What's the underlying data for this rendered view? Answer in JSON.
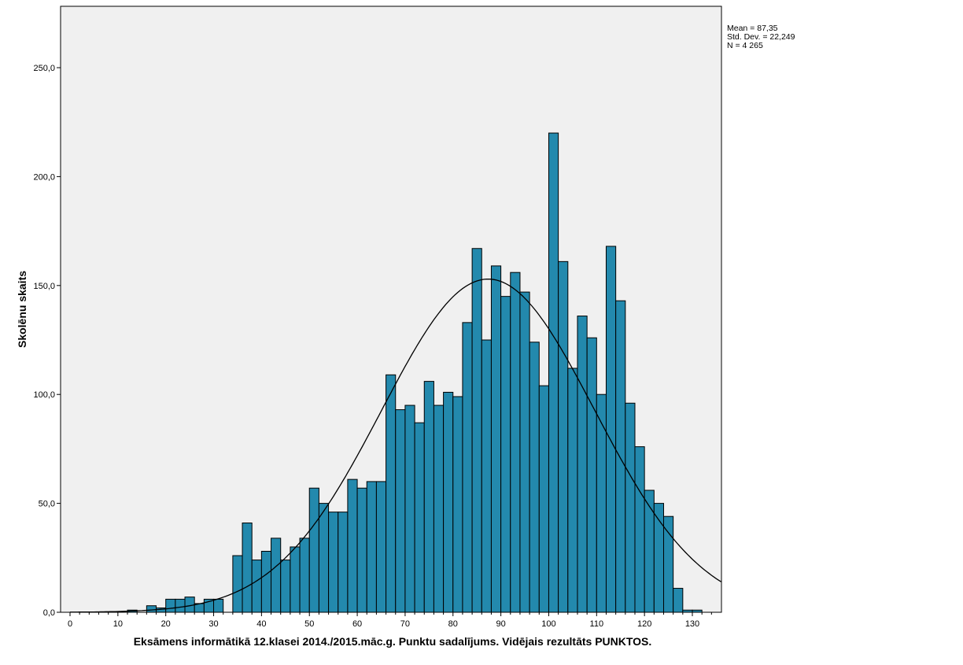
{
  "chart_data": {
    "type": "bar",
    "subtype": "histogram",
    "xlabel": "Eksāmens informātikā 12.klasei 2014./2015.māc.g. Punktu sadalījums. Vidējais rezultāts PUNKTOS.",
    "ylabel": "Skolēnu skaits",
    "xlim": [
      -2,
      136
    ],
    "ylim": [
      0,
      278
    ],
    "bin_width": 2,
    "x_ticks": [
      0,
      10,
      20,
      30,
      40,
      50,
      60,
      70,
      80,
      90,
      100,
      110,
      120,
      130
    ],
    "x_tick_labels": [
      "0",
      "10",
      "20",
      "30",
      "40",
      "50",
      "60",
      "70",
      "80",
      "90",
      "100",
      "110",
      "120",
      "130"
    ],
    "y_ticks": [
      0,
      50,
      100,
      150,
      200,
      250
    ],
    "y_tick_labels": [
      "0,0",
      "50,0",
      "100,0",
      "150,0",
      "200,0",
      "250,0"
    ],
    "bin_starts": [
      12,
      14,
      16,
      18,
      20,
      22,
      24,
      26,
      28,
      30,
      32,
      34,
      36,
      38,
      40,
      42,
      44,
      46,
      48,
      50,
      52,
      54,
      56,
      58,
      60,
      62,
      64,
      66,
      68,
      70,
      72,
      74,
      76,
      78,
      80,
      82,
      84,
      86,
      88,
      90,
      92,
      94,
      96,
      98,
      100,
      102,
      104,
      106,
      108,
      110,
      112,
      114,
      116,
      118,
      120,
      122,
      124,
      126,
      128,
      130
    ],
    "values": [
      1,
      0,
      3,
      2,
      6,
      6,
      7,
      4,
      6,
      6,
      0,
      26,
      41,
      24,
      28,
      34,
      24,
      30,
      34,
      57,
      50,
      46,
      46,
      61,
      57,
      60,
      60,
      109,
      93,
      95,
      87,
      106,
      95,
      101,
      99,
      133,
      167,
      125,
      159,
      145,
      156,
      147,
      124,
      104,
      220,
      161,
      112,
      136,
      126,
      100,
      168,
      143,
      96,
      76,
      56,
      50,
      44,
      11,
      1,
      1
    ],
    "normal_curve": {
      "mean": 87.35,
      "std": 22.249,
      "n": 4265
    },
    "stats_lines": [
      "Mean = 87,35",
      "Std. Dev. = 22,249",
      "N = 4 265"
    ],
    "colors": {
      "bar": "#2389ad",
      "bar_edge": "#000000",
      "plot_bg": "#f0f0f0",
      "curve": "#000000"
    },
    "legend_position": "top-right outside"
  }
}
